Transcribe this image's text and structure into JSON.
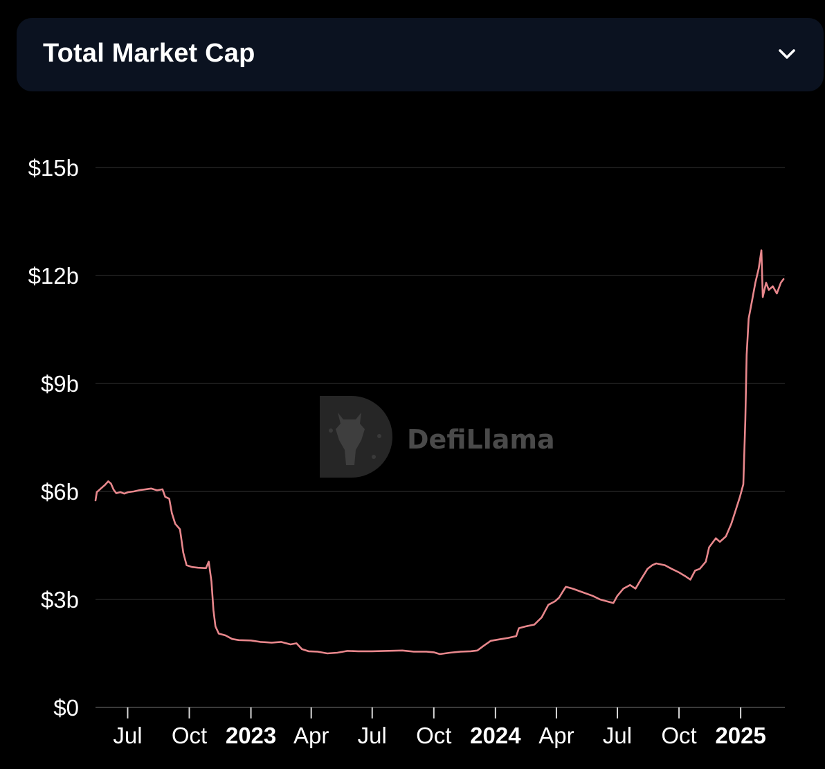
{
  "header": {
    "title": "Total Market Cap",
    "toggle_icon": "chevron-down-icon"
  },
  "watermark": {
    "text": "DefiLlama",
    "icon": "llama-logo-icon"
  },
  "colors": {
    "background": "#000000",
    "header_bg": "#0b1220",
    "line": "#e8878c",
    "grid": "#222222",
    "text": "#ffffff"
  },
  "chart_data": {
    "type": "line",
    "title": "",
    "xlabel": "",
    "ylabel": "",
    "grid": true,
    "legend": "none",
    "ylim": [
      0,
      15000000000
    ],
    "y_ticks": [
      {
        "value": 0,
        "label": "$0"
      },
      {
        "value": 3000000000,
        "label": "$3b"
      },
      {
        "value": 6000000000,
        "label": "$6b"
      },
      {
        "value": 9000000000,
        "label": "$9b"
      },
      {
        "value": 12000000000,
        "label": "$12b"
      },
      {
        "value": 15000000000,
        "label": "$15b"
      }
    ],
    "xlim": [
      "2022-05-14",
      "2025-03-08"
    ],
    "x_ticks": [
      {
        "date": "2022-07-01",
        "label": "Jul",
        "bold": false
      },
      {
        "date": "2022-10-01",
        "label": "Oct",
        "bold": false
      },
      {
        "date": "2023-01-01",
        "label": "2023",
        "bold": true
      },
      {
        "date": "2023-04-01",
        "label": "Apr",
        "bold": false
      },
      {
        "date": "2023-07-01",
        "label": "Jul",
        "bold": false
      },
      {
        "date": "2023-10-01",
        "label": "Oct",
        "bold": false
      },
      {
        "date": "2024-01-01",
        "label": "2024",
        "bold": true
      },
      {
        "date": "2024-04-01",
        "label": "Apr",
        "bold": false
      },
      {
        "date": "2024-07-01",
        "label": "Jul",
        "bold": false
      },
      {
        "date": "2024-10-01",
        "label": "Oct",
        "bold": false
      },
      {
        "date": "2025-01-01",
        "label": "2025",
        "bold": true
      }
    ],
    "series": [
      {
        "points": [
          [
            "2022-05-14",
            5.75
          ],
          [
            "2022-05-16",
            5.98
          ],
          [
            "2022-05-22",
            6.08
          ],
          [
            "2022-05-28",
            6.18
          ],
          [
            "2022-06-02",
            6.28
          ],
          [
            "2022-06-06",
            6.22
          ],
          [
            "2022-06-10",
            6.05
          ],
          [
            "2022-06-14",
            5.95
          ],
          [
            "2022-06-20",
            5.98
          ],
          [
            "2022-06-26",
            5.94
          ],
          [
            "2022-07-02",
            5.98
          ],
          [
            "2022-07-10",
            6.0
          ],
          [
            "2022-07-20",
            6.04
          ],
          [
            "2022-07-28",
            6.06
          ],
          [
            "2022-08-05",
            6.08
          ],
          [
            "2022-08-14",
            6.03
          ],
          [
            "2022-08-22",
            6.06
          ],
          [
            "2022-08-26",
            5.85
          ],
          [
            "2022-09-01",
            5.8
          ],
          [
            "2022-09-05",
            5.4
          ],
          [
            "2022-09-10",
            5.1
          ],
          [
            "2022-09-17",
            4.95
          ],
          [
            "2022-09-22",
            4.3
          ],
          [
            "2022-09-27",
            3.95
          ],
          [
            "2022-10-05",
            3.9
          ],
          [
            "2022-10-14",
            3.88
          ],
          [
            "2022-10-26",
            3.87
          ],
          [
            "2022-10-30",
            4.05
          ],
          [
            "2022-11-03",
            3.5
          ],
          [
            "2022-11-06",
            2.7
          ],
          [
            "2022-11-09",
            2.25
          ],
          [
            "2022-11-14",
            2.05
          ],
          [
            "2022-11-24",
            2.0
          ],
          [
            "2022-12-04",
            1.9
          ],
          [
            "2022-12-14",
            1.87
          ],
          [
            "2023-01-01",
            1.86
          ],
          [
            "2023-01-15",
            1.82
          ],
          [
            "2023-02-01",
            1.8
          ],
          [
            "2023-02-15",
            1.82
          ],
          [
            "2023-03-01",
            1.75
          ],
          [
            "2023-03-10",
            1.78
          ],
          [
            "2023-03-18",
            1.62
          ],
          [
            "2023-03-28",
            1.56
          ],
          [
            "2023-04-10",
            1.55
          ],
          [
            "2023-04-25",
            1.5
          ],
          [
            "2023-05-10",
            1.52
          ],
          [
            "2023-05-25",
            1.57
          ],
          [
            "2023-06-10",
            1.56
          ],
          [
            "2023-07-01",
            1.56
          ],
          [
            "2023-07-20",
            1.57
          ],
          [
            "2023-08-15",
            1.58
          ],
          [
            "2023-09-01",
            1.55
          ],
          [
            "2023-09-20",
            1.55
          ],
          [
            "2023-10-01",
            1.53
          ],
          [
            "2023-10-10",
            1.48
          ],
          [
            "2023-10-25",
            1.52
          ],
          [
            "2023-11-10",
            1.55
          ],
          [
            "2023-11-25",
            1.56
          ],
          [
            "2023-12-05",
            1.58
          ],
          [
            "2023-12-15",
            1.72
          ],
          [
            "2023-12-25",
            1.85
          ],
          [
            "2024-01-10",
            1.9
          ],
          [
            "2024-01-20",
            1.93
          ],
          [
            "2024-02-01",
            1.98
          ],
          [
            "2024-02-05",
            2.2
          ],
          [
            "2024-02-15",
            2.25
          ],
          [
            "2024-02-28",
            2.3
          ],
          [
            "2024-03-10",
            2.5
          ],
          [
            "2024-03-20",
            2.85
          ],
          [
            "2024-03-30",
            2.95
          ],
          [
            "2024-04-05",
            3.05
          ],
          [
            "2024-04-10",
            3.2
          ],
          [
            "2024-04-15",
            3.35
          ],
          [
            "2024-04-25",
            3.3
          ],
          [
            "2024-05-10",
            3.2
          ],
          [
            "2024-05-25",
            3.1
          ],
          [
            "2024-06-05",
            3.0
          ],
          [
            "2024-06-15",
            2.95
          ],
          [
            "2024-06-25",
            2.9
          ],
          [
            "2024-07-01",
            3.1
          ],
          [
            "2024-07-10",
            3.3
          ],
          [
            "2024-07-20",
            3.4
          ],
          [
            "2024-07-28",
            3.3
          ],
          [
            "2024-08-05",
            3.55
          ],
          [
            "2024-08-15",
            3.85
          ],
          [
            "2024-08-22",
            3.95
          ],
          [
            "2024-08-28",
            4.0
          ],
          [
            "2024-09-10",
            3.95
          ],
          [
            "2024-09-20",
            3.85
          ],
          [
            "2024-10-01",
            3.75
          ],
          [
            "2024-10-10",
            3.65
          ],
          [
            "2024-10-18",
            3.55
          ],
          [
            "2024-10-25",
            3.8
          ],
          [
            "2024-11-01",
            3.85
          ],
          [
            "2024-11-10",
            4.05
          ],
          [
            "2024-11-15",
            4.45
          ],
          [
            "2024-11-25",
            4.7
          ],
          [
            "2024-12-01",
            4.6
          ],
          [
            "2024-12-10",
            4.75
          ],
          [
            "2024-12-18",
            5.1
          ],
          [
            "2024-12-25",
            5.5
          ],
          [
            "2024-12-31",
            5.85
          ],
          [
            "2025-01-05",
            6.2
          ],
          [
            "2025-01-08",
            8.0
          ],
          [
            "2025-01-10",
            9.8
          ],
          [
            "2025-01-13",
            10.8
          ],
          [
            "2025-01-18",
            11.3
          ],
          [
            "2025-01-23",
            11.8
          ],
          [
            "2025-01-28",
            12.2
          ],
          [
            "2025-02-01",
            12.7
          ],
          [
            "2025-02-03",
            11.4
          ],
          [
            "2025-02-08",
            11.8
          ],
          [
            "2025-02-12",
            11.6
          ],
          [
            "2025-02-18",
            11.7
          ],
          [
            "2025-02-24",
            11.5
          ],
          [
            "2025-03-02",
            11.8
          ],
          [
            "2025-03-06",
            11.9
          ]
        ],
        "unit": "billions USD"
      }
    ]
  }
}
